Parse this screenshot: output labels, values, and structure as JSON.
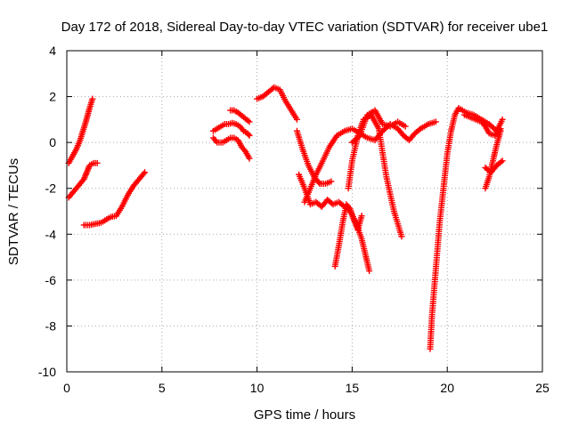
{
  "chart_data": {
    "type": "scatter",
    "title": "Day 172 of 2018, Sidereal Day-to-day VTEC variation (SDTVAR) for receiver ube1",
    "xlabel": "GPS time / hours",
    "ylabel": "SDTVAR / TECUs",
    "xlim": [
      0,
      25
    ],
    "ylim": [
      -10,
      4
    ],
    "xticks": [
      "0",
      "5",
      "10",
      "15",
      "20",
      "25"
    ],
    "yticks": [
      "4",
      "2",
      "0",
      "-2",
      "-4",
      "-6",
      "-8",
      "-10"
    ],
    "grid": true,
    "marker": "+",
    "color": "#ff0000",
    "segments": [
      {
        "x": [
          0.1,
          0.3,
          0.5,
          0.7,
          0.85,
          1.0,
          1.1,
          1.2,
          1.35
        ],
        "y": [
          -0.9,
          -0.6,
          -0.3,
          0.1,
          0.5,
          0.9,
          1.2,
          1.5,
          1.9
        ]
      },
      {
        "x": [
          0.1,
          0.3,
          0.5,
          0.7,
          0.9,
          1.0,
          1.1,
          1.2,
          1.4,
          1.6
        ],
        "y": [
          -2.4,
          -2.2,
          -2.0,
          -1.8,
          -1.6,
          -1.4,
          -1.2,
          -1.0,
          -0.9,
          -0.9
        ]
      },
      {
        "x": [
          0.9,
          1.2,
          1.5,
          1.8,
          2.1,
          2.3,
          2.6,
          2.9,
          3.2,
          3.5,
          3.8,
          4.1
        ],
        "y": [
          -3.6,
          -3.6,
          -3.55,
          -3.5,
          -3.35,
          -3.25,
          -3.2,
          -2.8,
          -2.3,
          -1.9,
          -1.6,
          -1.3
        ]
      },
      {
        "x": [
          7.7,
          7.9,
          8.1,
          8.3,
          8.5,
          8.7,
          8.9,
          9.1,
          9.3,
          9.5,
          9.6
        ],
        "y": [
          0.5,
          0.6,
          0.7,
          0.8,
          0.8,
          0.85,
          0.8,
          0.7,
          0.5,
          0.4,
          0.3
        ]
      },
      {
        "x": [
          7.7,
          7.9,
          8.2,
          8.4,
          8.6,
          8.8,
          9.0,
          9.2,
          9.4,
          9.6
        ],
        "y": [
          0.2,
          0.0,
          0.0,
          0.1,
          0.2,
          0.2,
          0.1,
          -0.2,
          -0.4,
          -0.7
        ]
      },
      {
        "x": [
          8.6,
          8.8,
          9.0,
          9.3,
          9.6
        ],
        "y": [
          1.4,
          1.4,
          1.3,
          1.1,
          0.9
        ]
      },
      {
        "x": [
          10.0,
          10.3,
          10.6,
          10.9,
          11.2,
          11.5,
          11.8,
          12.1
        ],
        "y": [
          1.9,
          2.0,
          2.2,
          2.4,
          2.3,
          1.8,
          1.4,
          1.0
        ]
      },
      {
        "x": [
          12.1,
          12.4,
          12.7,
          13.0,
          13.3,
          13.6,
          13.9
        ],
        "y": [
          0.5,
          -0.3,
          -1.0,
          -1.5,
          -1.8,
          -1.8,
          -1.7
        ]
      },
      {
        "x": [
          12.5,
          12.8,
          13.1,
          13.4,
          13.8,
          14.2,
          14.6,
          15.0,
          15.4,
          15.8,
          16.2,
          16.6,
          17.0,
          17.4,
          17.7,
          18.0,
          18.3,
          18.6,
          19.0,
          19.4
        ],
        "y": [
          -2.6,
          -2.0,
          -1.4,
          -0.9,
          -0.2,
          0.3,
          0.5,
          0.6,
          0.4,
          0.2,
          0.1,
          0.5,
          0.8,
          0.6,
          0.3,
          0.1,
          0.4,
          0.6,
          0.8,
          0.9
        ]
      },
      {
        "x": [
          12.2,
          12.5,
          12.8,
          13.1,
          13.4,
          13.7,
          14.0,
          14.3,
          14.6,
          14.9,
          15.2,
          15.5,
          15.7,
          15.9
        ],
        "y": [
          -1.4,
          -2.0,
          -2.7,
          -2.6,
          -2.8,
          -2.5,
          -2.7,
          -2.6,
          -2.8,
          -3.0,
          -3.5,
          -4.2,
          -4.9,
          -5.6
        ]
      },
      {
        "x": [
          14.1,
          14.3,
          14.5,
          14.7,
          14.9,
          15.1,
          15.3,
          15.5
        ],
        "y": [
          -5.4,
          -4.5,
          -3.5,
          -2.7,
          -2.9,
          -3.4,
          -3.8,
          -3.2
        ]
      },
      {
        "x": [
          14.8,
          15.0,
          15.3,
          15.6,
          16.0,
          16.4,
          16.8,
          17.2,
          17.6
        ],
        "y": [
          -2.0,
          -0.8,
          0.3,
          1.0,
          1.2,
          0.6,
          -1.5,
          -3.0,
          -4.1
        ]
      },
      {
        "x": [
          15.0,
          15.4,
          15.8,
          16.2,
          16.6,
          17.0,
          17.4,
          17.8
        ],
        "y": [
          0.0,
          0.3,
          1.2,
          1.4,
          0.8,
          0.7,
          0.9,
          0.7
        ]
      },
      {
        "x": [
          19.1,
          19.2,
          19.4,
          19.6,
          19.8,
          20.0,
          20.2,
          20.4,
          20.6,
          21.0,
          21.4,
          21.8,
          22.2,
          22.6,
          22.9
        ],
        "y": [
          -9.0,
          -7.5,
          -5.5,
          -3.5,
          -2.0,
          -0.5,
          0.5,
          1.2,
          1.5,
          1.3,
          1.2,
          1.0,
          0.8,
          0.5,
          1.0
        ]
      },
      {
        "x": [
          20.9,
          21.2,
          21.5,
          21.8,
          22.0,
          22.2,
          22.5,
          22.8
        ],
        "y": [
          1.2,
          1.1,
          1.0,
          0.9,
          0.7,
          0.4,
          0.3,
          0.6
        ]
      },
      {
        "x": [
          22.0,
          22.2,
          22.4,
          22.6,
          22.8
        ],
        "y": [
          -2.0,
          -1.5,
          -0.8,
          -0.1,
          0.5
        ]
      },
      {
        "x": [
          22.0,
          22.3,
          22.6,
          22.9
        ],
        "y": [
          -1.1,
          -1.3,
          -1.0,
          -0.8
        ]
      }
    ]
  }
}
